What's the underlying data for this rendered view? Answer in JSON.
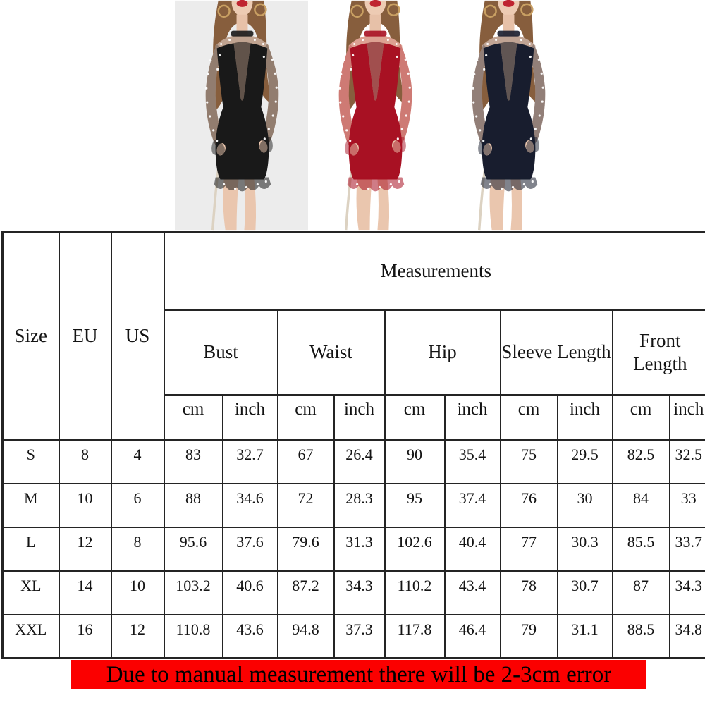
{
  "gallery": {
    "variants": [
      {
        "label": "black-dress",
        "dress_color": "#191919",
        "background": "#ececec"
      },
      {
        "label": "red-dress",
        "dress_color": "#a81123",
        "background": "#ffffff"
      },
      {
        "label": "navy-dress",
        "dress_color": "#181d2e",
        "background": "#ffffff"
      }
    ]
  },
  "size_chart": {
    "title": "Measurements",
    "col_headers": {
      "size": "Size",
      "eu": "EU",
      "us": "US"
    },
    "groups": [
      {
        "label": "Bust"
      },
      {
        "label": "Waist"
      },
      {
        "label": "Hip"
      },
      {
        "label": "Sleeve Length"
      },
      {
        "label": "Front Length"
      }
    ],
    "unit_cm": "cm",
    "unit_inch": "inch",
    "rows": [
      {
        "size": "S",
        "eu": "8",
        "us": "4",
        "values": [
          "83",
          "32.7",
          "67",
          "26.4",
          "90",
          "35.4",
          "75",
          "29.5",
          "82.5",
          "32.5"
        ]
      },
      {
        "size": "M",
        "eu": "10",
        "us": "6",
        "values": [
          "88",
          "34.6",
          "72",
          "28.3",
          "95",
          "37.4",
          "76",
          "30",
          "84",
          "33"
        ]
      },
      {
        "size": "L",
        "eu": "12",
        "us": "8",
        "values": [
          "95.6",
          "37.6",
          "79.6",
          "31.3",
          "102.6",
          "40.4",
          "77",
          "30.3",
          "85.5",
          "33.7"
        ]
      },
      {
        "size": "XL",
        "eu": "14",
        "us": "10",
        "values": [
          "103.2",
          "40.6",
          "87.2",
          "34.3",
          "110.2",
          "43.4",
          "78",
          "30.7",
          "87",
          "34.3"
        ]
      },
      {
        "size": "XXL",
        "eu": "16",
        "us": "12",
        "values": [
          "110.8",
          "43.6",
          "94.8",
          "37.3",
          "117.8",
          "46.4",
          "79",
          "31.1",
          "88.5",
          "34.8"
        ]
      }
    ]
  },
  "notice": {
    "text": "Due to manual measurement there will be 2-3cm error",
    "background": "#fb0000",
    "text_color": "#000000"
  },
  "colors": {
    "header_text": "#f10000",
    "body_text": "#141414",
    "grid_border": "#242424"
  }
}
